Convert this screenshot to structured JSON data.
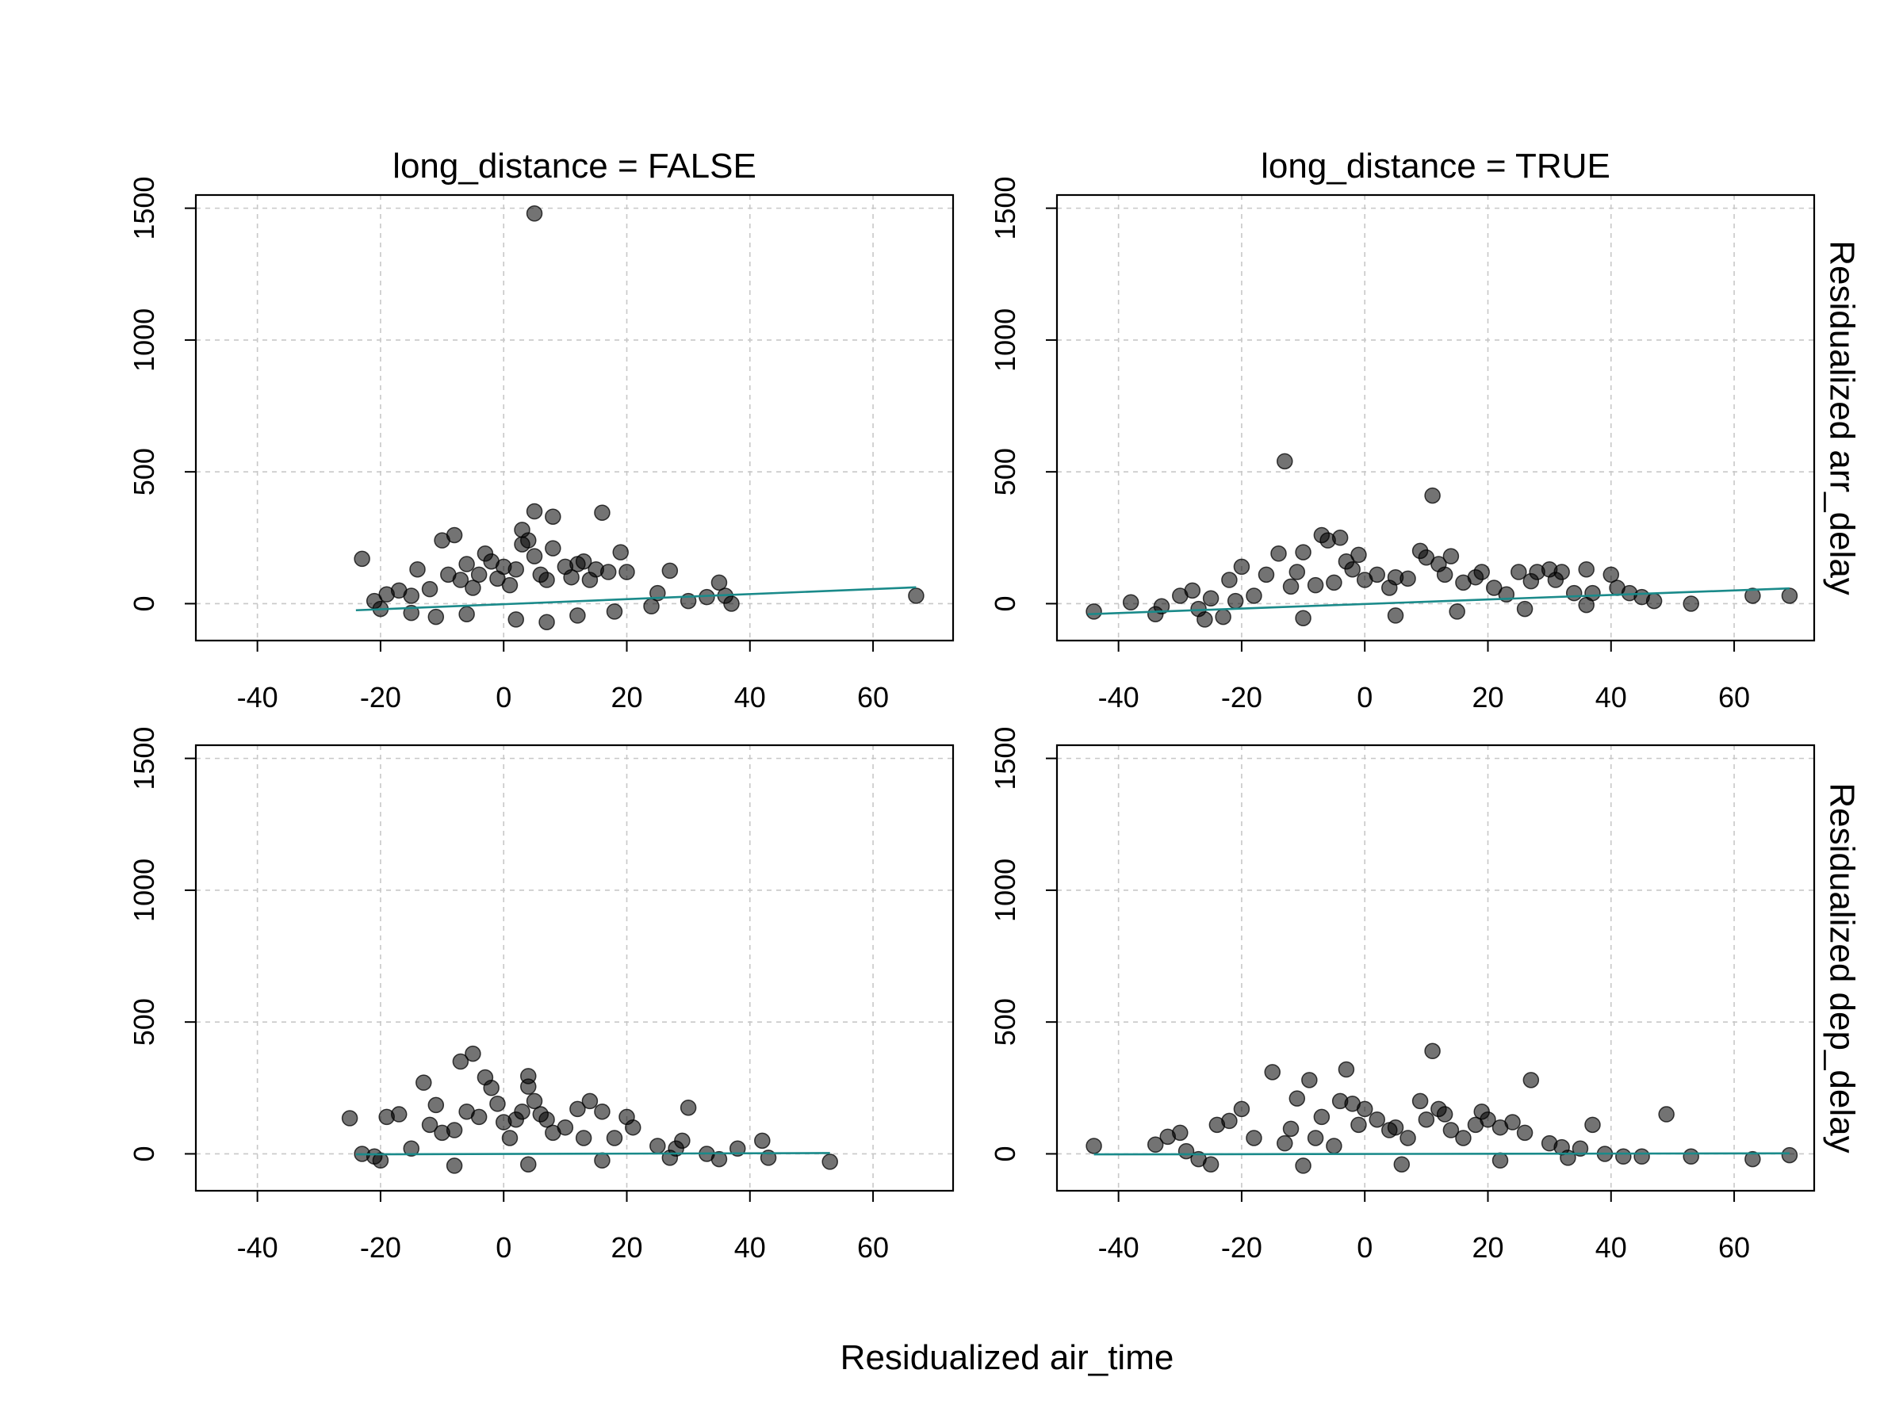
{
  "chart_data": {
    "type": "scatter",
    "xlabel": "Residualized air_time",
    "xlim": [
      -50,
      73
    ],
    "ylim": [
      -140,
      1550
    ],
    "x_ticks": [
      -40,
      -20,
      0,
      20,
      40,
      60
    ],
    "y_ticks": [
      0,
      500,
      1000,
      1500
    ],
    "grid": true,
    "fit_color": "#1a8a8a",
    "point_color": "#000000",
    "column_labels": [
      "long_distance = FALSE",
      "long_distance = TRUE"
    ],
    "row_labels": [
      "Residualized arr_delay",
      "Residualized dep_delay"
    ],
    "panels": [
      {
        "column": 0,
        "row": 0,
        "fit_line": [
          [
            -24,
            -25
          ],
          [
            67,
            62
          ]
        ],
        "points": [
          [
            -23,
            170
          ],
          [
            -21,
            10
          ],
          [
            -19,
            35
          ],
          [
            -17,
            50
          ],
          [
            -15,
            30
          ],
          [
            -14,
            130
          ],
          [
            -12,
            55
          ],
          [
            -10,
            240
          ],
          [
            -9,
            110
          ],
          [
            -8,
            260
          ],
          [
            -7,
            90
          ],
          [
            -6,
            150
          ],
          [
            -5,
            60
          ],
          [
            -4,
            110
          ],
          [
            -3,
            190
          ],
          [
            -2,
            160
          ],
          [
            -1,
            95
          ],
          [
            0,
            140
          ],
          [
            1,
            70
          ],
          [
            2,
            130
          ],
          [
            3,
            280
          ],
          [
            3,
            225
          ],
          [
            4,
            240
          ],
          [
            5,
            350
          ],
          [
            5,
            180
          ],
          [
            6,
            110
          ],
          [
            7,
            90
          ],
          [
            8,
            330
          ],
          [
            8,
            210
          ],
          [
            10,
            140
          ],
          [
            11,
            100
          ],
          [
            12,
            150
          ],
          [
            13,
            160
          ],
          [
            14,
            90
          ],
          [
            15,
            130
          ],
          [
            16,
            345
          ],
          [
            17,
            120
          ],
          [
            19,
            195
          ],
          [
            20,
            120
          ],
          [
            25,
            40
          ],
          [
            27,
            125
          ],
          [
            30,
            10
          ],
          [
            33,
            25
          ],
          [
            35,
            80
          ],
          [
            36,
            30
          ],
          [
            37,
            0
          ],
          [
            67,
            30
          ],
          [
            5,
            1480
          ],
          [
            -6,
            -40
          ],
          [
            2,
            -60
          ],
          [
            7,
            -70
          ],
          [
            -11,
            -50
          ],
          [
            -15,
            -35
          ],
          [
            -20,
            -20
          ],
          [
            12,
            -45
          ],
          [
            18,
            -30
          ],
          [
            24,
            -10
          ]
        ]
      },
      {
        "column": 1,
        "row": 0,
        "fit_line": [
          [
            -45,
            -40
          ],
          [
            69,
            58
          ]
        ],
        "points": [
          [
            -44,
            -30
          ],
          [
            -38,
            5
          ],
          [
            -34,
            -40
          ],
          [
            -33,
            -10
          ],
          [
            -30,
            30
          ],
          [
            -28,
            50
          ],
          [
            -27,
            -20
          ],
          [
            -25,
            20
          ],
          [
            -23,
            -50
          ],
          [
            -22,
            90
          ],
          [
            -21,
            10
          ],
          [
            -20,
            140
          ],
          [
            -18,
            30
          ],
          [
            -16,
            110
          ],
          [
            -14,
            190
          ],
          [
            -13,
            540
          ],
          [
            -12,
            65
          ],
          [
            -11,
            120
          ],
          [
            -10,
            195
          ],
          [
            -8,
            70
          ],
          [
            -7,
            260
          ],
          [
            -6,
            240
          ],
          [
            -5,
            80
          ],
          [
            -4,
            250
          ],
          [
            -3,
            160
          ],
          [
            -2,
            130
          ],
          [
            -1,
            185
          ],
          [
            0,
            90
          ],
          [
            2,
            110
          ],
          [
            4,
            60
          ],
          [
            5,
            100
          ],
          [
            7,
            95
          ],
          [
            9,
            200
          ],
          [
            10,
            175
          ],
          [
            11,
            410
          ],
          [
            12,
            150
          ],
          [
            13,
            110
          ],
          [
            14,
            180
          ],
          [
            16,
            80
          ],
          [
            18,
            100
          ],
          [
            19,
            120
          ],
          [
            21,
            60
          ],
          [
            23,
            35
          ],
          [
            25,
            120
          ],
          [
            27,
            85
          ],
          [
            28,
            120
          ],
          [
            30,
            130
          ],
          [
            31,
            90
          ],
          [
            32,
            120
          ],
          [
            34,
            40
          ],
          [
            36,
            130
          ],
          [
            37,
            40
          ],
          [
            40,
            110
          ],
          [
            41,
            60
          ],
          [
            43,
            40
          ],
          [
            45,
            25
          ],
          [
            47,
            10
          ],
          [
            53,
            0
          ],
          [
            63,
            30
          ],
          [
            69,
            30
          ],
          [
            -26,
            -60
          ],
          [
            -10,
            -55
          ],
          [
            5,
            -45
          ],
          [
            15,
            -30
          ],
          [
            26,
            -20
          ],
          [
            36,
            -5
          ]
        ]
      },
      {
        "column": 0,
        "row": 1,
        "fit_line": [
          [
            -24,
            -2
          ],
          [
            53,
            3
          ]
        ],
        "points": [
          [
            -25,
            135
          ],
          [
            -23,
            0
          ],
          [
            -21,
            -10
          ],
          [
            -19,
            140
          ],
          [
            -17,
            150
          ],
          [
            -15,
            20
          ],
          [
            -13,
            270
          ],
          [
            -12,
            110
          ],
          [
            -11,
            185
          ],
          [
            -10,
            80
          ],
          [
            -8,
            90
          ],
          [
            -7,
            350
          ],
          [
            -6,
            160
          ],
          [
            -5,
            380
          ],
          [
            -4,
            140
          ],
          [
            -3,
            290
          ],
          [
            -2,
            250
          ],
          [
            -1,
            190
          ],
          [
            0,
            120
          ],
          [
            1,
            60
          ],
          [
            2,
            130
          ],
          [
            3,
            160
          ],
          [
            4,
            295
          ],
          [
            4,
            255
          ],
          [
            5,
            200
          ],
          [
            6,
            150
          ],
          [
            7,
            130
          ],
          [
            8,
            80
          ],
          [
            10,
            100
          ],
          [
            12,
            170
          ],
          [
            13,
            60
          ],
          [
            14,
            200
          ],
          [
            16,
            160
          ],
          [
            18,
            60
          ],
          [
            20,
            140
          ],
          [
            21,
            100
          ],
          [
            25,
            30
          ],
          [
            28,
            20
          ],
          [
            29,
            50
          ],
          [
            30,
            175
          ],
          [
            33,
            0
          ],
          [
            35,
            -20
          ],
          [
            38,
            20
          ],
          [
            42,
            50
          ],
          [
            43,
            -15
          ],
          [
            53,
            -30
          ],
          [
            -20,
            -25
          ],
          [
            -8,
            -45
          ],
          [
            4,
            -40
          ],
          [
            16,
            -25
          ],
          [
            27,
            -15
          ]
        ]
      },
      {
        "column": 1,
        "row": 1,
        "fit_line": [
          [
            -44,
            -2
          ],
          [
            69,
            2
          ]
        ],
        "points": [
          [
            -44,
            30
          ],
          [
            -34,
            35
          ],
          [
            -32,
            65
          ],
          [
            -30,
            80
          ],
          [
            -29,
            10
          ],
          [
            -27,
            -20
          ],
          [
            -24,
            110
          ],
          [
            -22,
            125
          ],
          [
            -20,
            170
          ],
          [
            -18,
            60
          ],
          [
            -15,
            310
          ],
          [
            -13,
            40
          ],
          [
            -12,
            95
          ],
          [
            -11,
            210
          ],
          [
            -9,
            280
          ],
          [
            -8,
            60
          ],
          [
            -7,
            140
          ],
          [
            -5,
            30
          ],
          [
            -4,
            200
          ],
          [
            -3,
            320
          ],
          [
            -2,
            190
          ],
          [
            -1,
            110
          ],
          [
            0,
            170
          ],
          [
            2,
            130
          ],
          [
            4,
            90
          ],
          [
            5,
            100
          ],
          [
            7,
            60
          ],
          [
            9,
            200
          ],
          [
            10,
            130
          ],
          [
            11,
            390
          ],
          [
            12,
            170
          ],
          [
            13,
            150
          ],
          [
            14,
            90
          ],
          [
            16,
            60
          ],
          [
            18,
            110
          ],
          [
            19,
            160
          ],
          [
            20,
            130
          ],
          [
            22,
            100
          ],
          [
            24,
            120
          ],
          [
            26,
            80
          ],
          [
            27,
            280
          ],
          [
            30,
            40
          ],
          [
            32,
            25
          ],
          [
            35,
            20
          ],
          [
            37,
            110
          ],
          [
            39,
            0
          ],
          [
            42,
            -10
          ],
          [
            45,
            -10
          ],
          [
            49,
            150
          ],
          [
            53,
            -10
          ],
          [
            63,
            -20
          ],
          [
            69,
            -5
          ],
          [
            -25,
            -40
          ],
          [
            -10,
            -45
          ],
          [
            6,
            -40
          ],
          [
            22,
            -25
          ],
          [
            33,
            -15
          ]
        ]
      }
    ]
  }
}
